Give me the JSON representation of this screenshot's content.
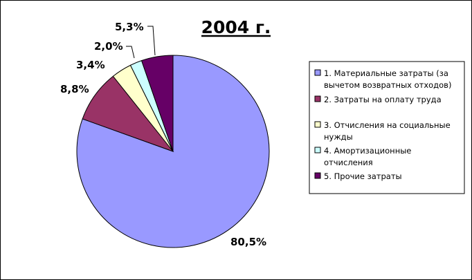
{
  "chart_data": {
    "type": "pie",
    "title": "2004 г.",
    "slices": [
      {
        "label": "1. Материальные затраты (за вычетом возвратных отходов)",
        "value": 80.5,
        "data_label": "80,5%",
        "color": "#9999ff"
      },
      {
        "label": "2. Затраты на оплату труда",
        "value": 8.8,
        "data_label": "8,8%",
        "color": "#993366"
      },
      {
        "label": "3. Отчисления на социальные нужды",
        "value": 3.4,
        "data_label": "3,4%",
        "color": "#ffffcc"
      },
      {
        "label": "4. Амортизационные отчисления",
        "value": 2.0,
        "data_label": "2,0%",
        "color": "#ccffff"
      },
      {
        "label": "5. Прочие затраты",
        "value": 5.3,
        "data_label": "5,3%",
        "color": "#660066"
      }
    ],
    "legend": {
      "placement": "right",
      "entries": [
        [
          "1. Материальные затраты (за",
          "вычетом возвратных отходов)"
        ],
        [
          "2. Затраты на оплату труда"
        ],
        [
          "3. Отчисления на социальные",
          "нужды"
        ],
        [
          "4. Амортизационные",
          "отчисления"
        ],
        [
          "5. Прочие затраты"
        ]
      ]
    }
  }
}
